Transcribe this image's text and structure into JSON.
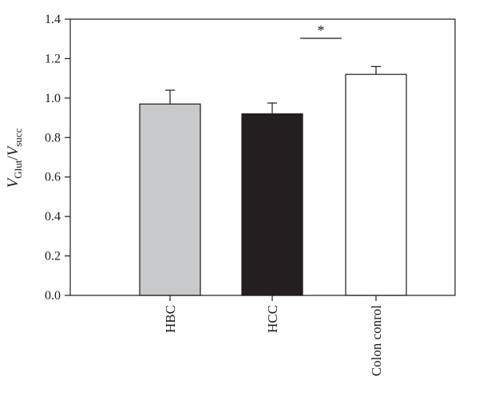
{
  "chart_data": {
    "type": "bar",
    "categories": [
      "HBC",
      "HCC",
      "Colon conrol"
    ],
    "values": [
      0.97,
      0.92,
      1.12
    ],
    "errors": [
      0.07,
      0.055,
      0.04
    ],
    "colors": [
      "#c8c9cb",
      "#231f20",
      "#ffffff"
    ],
    "bar_outline": "#1a1a1a",
    "ylabel": {
      "v1": "V",
      "sub1": "Glut",
      "slash": "/",
      "v2": "V",
      "sub2": "succ"
    },
    "ylim": [
      0,
      1.4
    ],
    "yticks": [
      "0.0",
      "0.2",
      "0.4",
      "0.6",
      "0.8",
      "1.0",
      "1.2",
      "1.4"
    ],
    "significance": {
      "label": "*",
      "between": [
        "HCC",
        "Colon conrol"
      ]
    },
    "grid": false
  }
}
